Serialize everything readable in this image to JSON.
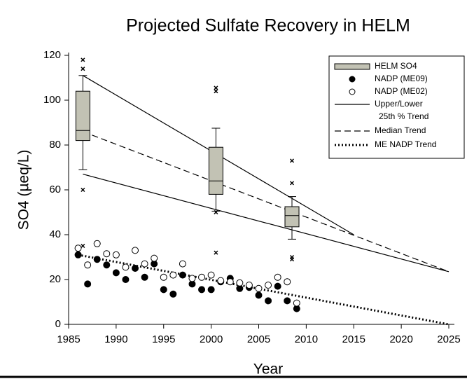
{
  "chart_data": {
    "type": "box",
    "title": "Projected Sulfate Recovery in HELM",
    "x_label": "Year",
    "y_label": "SO4 (µeq/L)",
    "xlim": [
      1985,
      2025
    ],
    "xticks": [
      1985,
      1990,
      1995,
      2000,
      2005,
      2010,
      2015,
      2020,
      2025
    ],
    "ylim": [
      0,
      120
    ],
    "yticks": [
      0,
      20,
      40,
      60,
      80,
      100,
      120
    ],
    "boxes": {
      "name": "HELM SO4",
      "color": "#c2c2b4",
      "items": [
        {
          "x": 1986.5,
          "whisker_low": 69,
          "q1": 82,
          "median": 86.5,
          "q3": 104,
          "whisker_high": 111,
          "outliers": [
            118,
            114,
            60,
            35
          ]
        },
        {
          "x": 2000.5,
          "whisker_low": 50.5,
          "q1": 58,
          "median": 64,
          "q3": 79,
          "whisker_high": 87.5,
          "outliers": [
            105.5,
            104,
            50,
            32
          ]
        },
        {
          "x": 2008.5,
          "whisker_low": 38,
          "q1": 43.5,
          "median": 48.5,
          "q3": 52.5,
          "whisker_high": 57,
          "outliers": [
            73,
            63,
            30,
            29
          ]
        }
      ]
    },
    "points": [
      {
        "name": "NADP (ME09)",
        "filled": true,
        "color": "#000000",
        "x": [
          1986,
          1987,
          1988,
          1989,
          1990,
          1991,
          1992,
          1993,
          1994,
          1995,
          1996,
          1997,
          1998,
          1999,
          2000,
          2001,
          2002,
          2003,
          2004,
          2005,
          2006,
          2007,
          2008,
          2009
        ],
        "values": [
          31,
          18,
          29,
          26.5,
          23,
          20,
          25,
          21,
          27,
          15.5,
          13.5,
          22,
          18,
          15.5,
          15.5,
          19,
          20.5,
          16,
          16.5,
          13,
          10.5,
          17,
          10.5,
          7
        ]
      },
      {
        "name": "NADP (ME02)",
        "filled": false,
        "color": "#000000",
        "x": [
          1986,
          1987,
          1988,
          1989,
          1990,
          1991,
          1992,
          1993,
          1994,
          1995,
          1996,
          1997,
          1998,
          1999,
          2000,
          2001,
          2002,
          2003,
          2004,
          2005,
          2006,
          2007,
          2008,
          2009
        ],
        "values": [
          34,
          26.5,
          36,
          31.5,
          31,
          25.5,
          33,
          27,
          29.5,
          21,
          22,
          27,
          20.5,
          21,
          22,
          19.5,
          19,
          18.5,
          17.5,
          16,
          17.5,
          21,
          19,
          9.5
        ]
      }
    ],
    "trends": [
      {
        "name": [
          "Upper/Lower",
          "25th % Trend"
        ],
        "dash": "solid",
        "x": [
          1986.5,
          2015
        ],
        "values": [
          111,
          40
        ]
      },
      {
        "dash": "solid",
        "x": [
          1986.5,
          2025
        ],
        "values": [
          67,
          23.5
        ]
      },
      {
        "name": [
          "Median Trend"
        ],
        "dash": "dashed",
        "x": [
          1986.5,
          2025
        ],
        "values": [
          86,
          23.5
        ]
      },
      {
        "name": [
          "ME NADP Trend"
        ],
        "dash": "dotted",
        "x": [
          1986,
          2025
        ],
        "values": [
          31,
          0
        ]
      }
    ]
  }
}
